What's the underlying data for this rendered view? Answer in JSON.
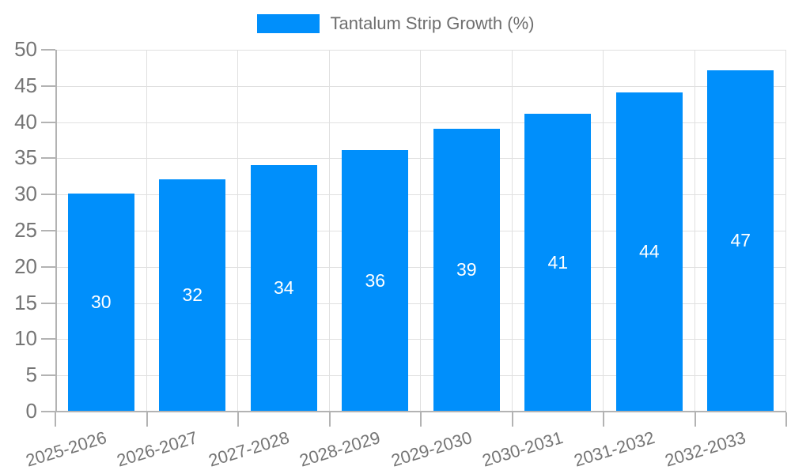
{
  "legend": {
    "label": "Tantalum Strip Growth (%)"
  },
  "chart_data": {
    "type": "bar",
    "title": "",
    "xlabel": "",
    "ylabel": "",
    "categories": [
      "2025-2026",
      "2026-2027",
      "2027-2028",
      "2028-2029",
      "2029-2030",
      "2030-2031",
      "2031-2032",
      "2032-2033"
    ],
    "series": [
      {
        "name": "Tantalum Strip Growth (%)",
        "color": "#008FFB",
        "values": [
          30,
          32,
          34,
          36,
          39,
          41,
          44,
          47
        ]
      }
    ],
    "value_labels": [
      30,
      32,
      34,
      36,
      39,
      41,
      44,
      47
    ],
    "value_label_position": "inside-center",
    "value_label_color": "#FFFFFF",
    "ylim": [
      0,
      50
    ],
    "ytick_step": 5,
    "ytick_labels": [
      "0",
      "5",
      "10",
      "15",
      "20",
      "25",
      "30",
      "35",
      "40",
      "45",
      "50"
    ],
    "grid": true,
    "xtick_rotation_deg": -17,
    "legend_position": "top-center"
  },
  "colors": {
    "bar": "#008FFB",
    "axis_text": "#757575",
    "grid_line": "#E0E0E0",
    "axis_line": "#B3B3B3",
    "value_text": "#FFFFFF",
    "background": "#FFFFFF"
  }
}
